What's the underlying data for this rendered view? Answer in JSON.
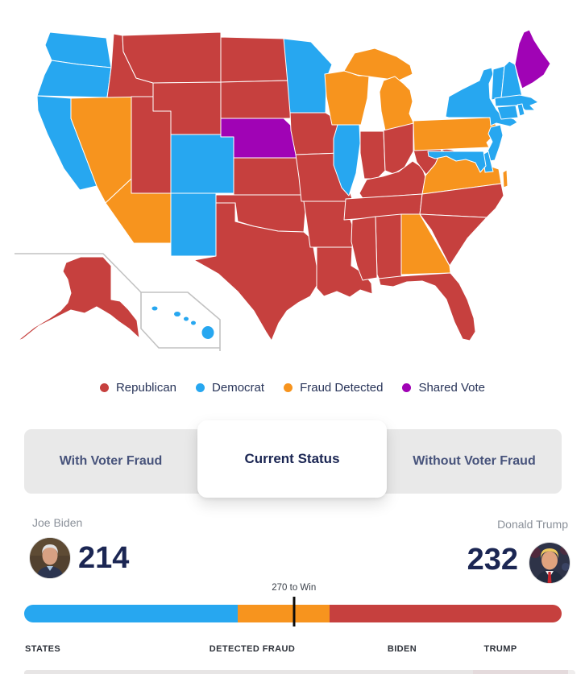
{
  "map": {
    "party_colors": {
      "republican": "#C6403E",
      "democrat": "#27A7F0",
      "fraud": "#F7941E",
      "shared": "#A003B5"
    },
    "legend": [
      {
        "label": "Republican",
        "color": "#C6403E"
      },
      {
        "label": "Democrat",
        "color": "#27A7F0"
      },
      {
        "label": "Fraud Detected",
        "color": "#F7941E"
      },
      {
        "label": "Shared Vote",
        "color": "#A003B5"
      }
    ],
    "states": {
      "WA": "democrat",
      "OR": "democrat",
      "CA": "democrat",
      "NV": "fraud",
      "ID": "republican",
      "MT": "republican",
      "WY": "republican",
      "UT": "republican",
      "CO": "democrat",
      "AZ": "fraud",
      "NM": "democrat",
      "ND": "republican",
      "SD": "republican",
      "NE": "shared",
      "KS": "republican",
      "OK": "republican",
      "TX": "republican",
      "MN": "democrat",
      "IA": "republican",
      "MO": "republican",
      "AR": "republican",
      "LA": "republican",
      "WI": "fraud",
      "MI": "fraud",
      "IL": "democrat",
      "IN": "republican",
      "OH": "republican",
      "KY": "republican",
      "TN": "republican",
      "MS": "republican",
      "AL": "republican",
      "GA": "fraud",
      "FL": "republican",
      "SC": "republican",
      "NC": "republican",
      "VA": "fraud",
      "WV": "republican",
      "PA": "fraud",
      "NY": "democrat",
      "NJ": "democrat",
      "DE": "democrat",
      "MD": "democrat",
      "VT": "democrat",
      "NH": "democrat",
      "MA": "democrat",
      "RI": "democrat",
      "CT": "democrat",
      "ME": "shared",
      "AK": "republican",
      "HI": "democrat"
    }
  },
  "tabs": {
    "items": [
      {
        "label": "With Voter Fraud",
        "active": false
      },
      {
        "label": "Current Status",
        "active": true
      },
      {
        "label": "Without Voter Fraud",
        "active": false
      }
    ]
  },
  "candidates": {
    "left": {
      "name": "Joe Biden",
      "votes": "214"
    },
    "right": {
      "name": "Donald Trump",
      "votes": "232"
    }
  },
  "race_bar": {
    "threshold_label": "270 to Win",
    "threshold": 270,
    "total": 538,
    "segments": [
      {
        "name": "biden",
        "value": 214,
        "color": "#27A7F0"
      },
      {
        "name": "detected-fraud",
        "value": 92,
        "color": "#F7941E"
      },
      {
        "name": "trump",
        "value": 232,
        "color": "#C6403E"
      }
    ]
  },
  "footer_labels": [
    {
      "text": "STATES"
    },
    {
      "text": "DETECTED FRAUD"
    },
    {
      "text": "BIDEN"
    },
    {
      "text": "TRUMP"
    }
  ]
}
